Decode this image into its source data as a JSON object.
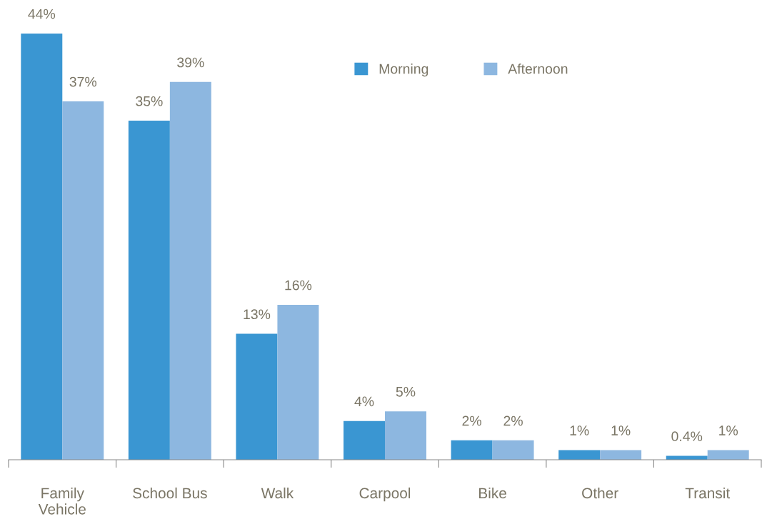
{
  "chart_data": {
    "type": "bar",
    "categories": [
      "Family\nVehicle",
      "School Bus",
      "Walk",
      "Carpool",
      "Bike",
      "Other",
      "Transit"
    ],
    "series": [
      {
        "name": "Morning",
        "color": "#3a96d2",
        "values": [
          44,
          35,
          13,
          4,
          2,
          1,
          0.4
        ],
        "value_labels": [
          "44%",
          "35%",
          "13%",
          "4%",
          "2%",
          "1%",
          "0.4%"
        ]
      },
      {
        "name": "Afternoon",
        "color": "#8db7e0",
        "values": [
          37,
          39,
          16,
          5,
          2,
          1,
          1
        ],
        "value_labels": [
          "37%",
          "39%",
          "16%",
          "5%",
          "2%",
          "1%",
          "1%"
        ]
      }
    ],
    "legend": "top right"
  }
}
